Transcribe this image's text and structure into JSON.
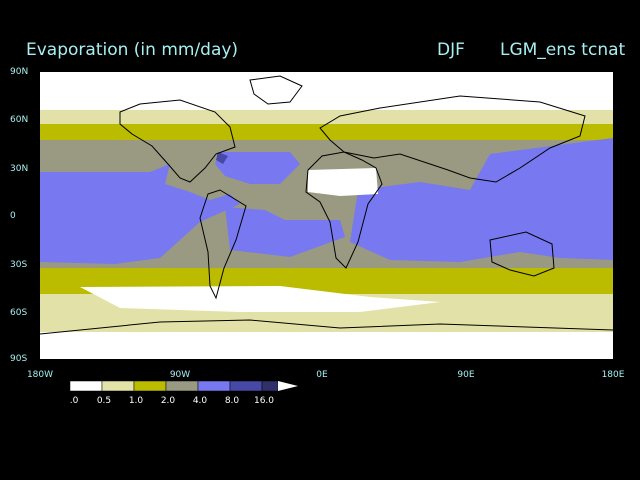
{
  "header": {
    "variable_title": "Evaporation (in mm/day)",
    "season": "DJF",
    "experiment": "LGM_ens tcnat"
  },
  "axes": {
    "lat_labels": [
      "90N",
      "60N",
      "30N",
      "0",
      "30S",
      "60S",
      "90S"
    ],
    "lon_labels": [
      "180W",
      "90W",
      "0E",
      "90E",
      "180E"
    ]
  },
  "colorbar": {
    "labels": [
      ".0",
      "0.5",
      "1.0",
      "2.0",
      "4.0",
      "8.0",
      "16.0"
    ],
    "colors": [
      "#ffffff",
      "#e2e2a8",
      "#bbbb00",
      "#9a9a82",
      "#7878f0",
      "#4848a6",
      "#30306a"
    ]
  },
  "colors": {
    "title_text": "#a6f0f2",
    "land_outline": "#000000",
    "background": "#000000"
  }
}
